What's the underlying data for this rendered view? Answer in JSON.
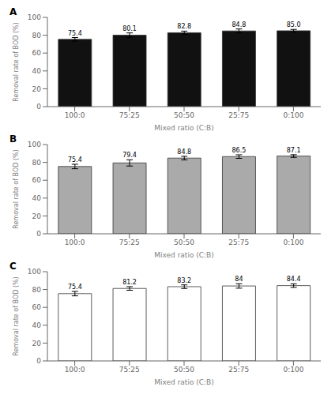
{
  "chart_data": [
    {
      "type": "bar",
      "title": "A",
      "categories": [
        "100:0",
        "75:25",
        "50:50",
        "25:75",
        "0:100"
      ],
      "values": [
        75.4,
        80.1,
        82.8,
        84.8,
        85.0
      ],
      "value_labels": [
        "75.4",
        "80.1",
        "82.8",
        "84.8",
        "85.0"
      ],
      "errors": [
        2.0,
        2.5,
        1.8,
        2.2,
        1.5
      ],
      "color": "#111111",
      "xlabel": "Mixed ratio (C:B)",
      "ylabel": "Removal rate of BOD (%)",
      "ylim": [
        0,
        100
      ],
      "yticks": [
        0,
        20,
        40,
        60,
        80,
        100
      ],
      "data_labels": true,
      "grid": false
    },
    {
      "type": "bar",
      "title": "B",
      "categories": [
        "100:0",
        "75:25",
        "50:50",
        "25:75",
        "0:100"
      ],
      "values": [
        75.4,
        79.4,
        84.8,
        86.5,
        87.1
      ],
      "errors": [
        2.5,
        3.5,
        2.0,
        2.0,
        1.5
      ],
      "color": "#aaaaaa",
      "xlabel": "Mixed ratio (C:B)",
      "ylabel": "Removal rate of BOD (%)",
      "ylim": [
        0,
        100
      ],
      "yticks": [
        0,
        20,
        40,
        60,
        80,
        100
      ],
      "data_labels": true,
      "grid": false
    },
    {
      "type": "bar",
      "title": "C",
      "categories": [
        "100:0",
        "75:25",
        "50:50",
        "25:75",
        "0:100"
      ],
      "values": [
        75.4,
        81.2,
        83.2,
        84.0,
        84.4
      ],
      "errors": [
        2.5,
        2.0,
        2.0,
        2.5,
        2.0
      ],
      "color": "#ffffff",
      "xlabel": "Mixed ratio (C:B)",
      "ylabel": "Removal rate of BOD (%)",
      "ylim": [
        0,
        100
      ],
      "yticks": [
        0,
        20,
        40,
        60,
        80,
        100
      ],
      "data_labels": true,
      "grid": false
    }
  ]
}
